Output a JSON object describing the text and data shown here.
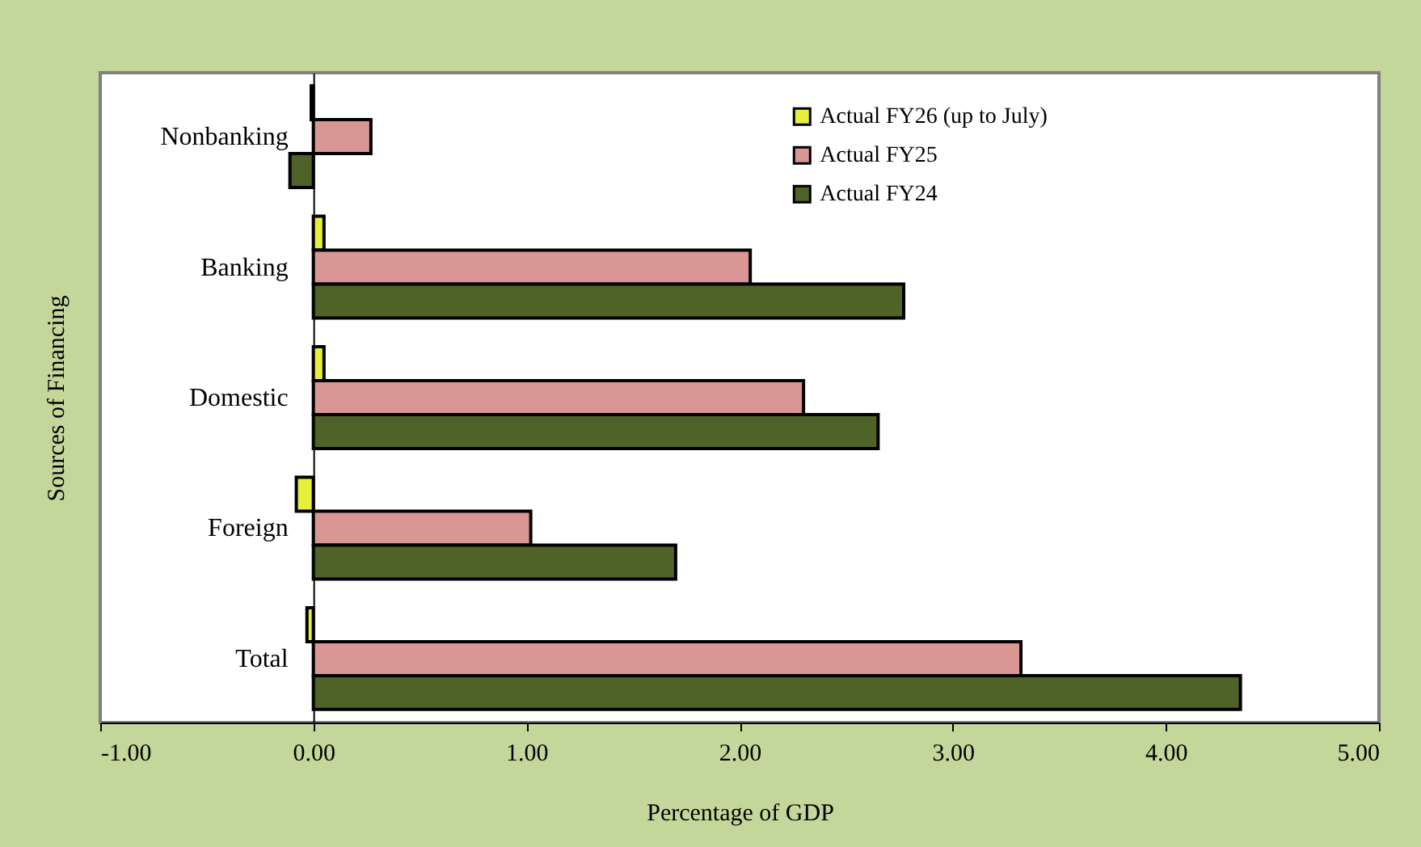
{
  "chart_data": {
    "type": "bar",
    "orientation": "horizontal",
    "xlabel": "Percentage of  GDP",
    "ylabel": "Sources of Financing",
    "categories": [
      "Nonbanking",
      "Banking",
      "Domestic",
      "Foreign",
      "Total"
    ],
    "series": [
      {
        "name": "Actual FY26 (up to July)",
        "color": "#e6f03c",
        "values": [
          -0.01,
          0.05,
          0.05,
          -0.08,
          -0.03
        ]
      },
      {
        "name": "Actual FY25",
        "color": "#da9694",
        "values": [
          0.27,
          2.05,
          2.3,
          1.02,
          3.32
        ]
      },
      {
        "name": "Actual FY24",
        "color": "#4f6228",
        "values": [
          -0.11,
          2.77,
          2.65,
          1.7,
          4.35
        ]
      }
    ],
    "xlim": [
      -1,
      5
    ],
    "xticks": [
      {
        "value": -1,
        "label": "-1.00"
      },
      {
        "value": 0,
        "label": "0.00"
      },
      {
        "value": 1,
        "label": "1.00"
      },
      {
        "value": 2,
        "label": "2.00"
      },
      {
        "value": 3,
        "label": "3.00"
      },
      {
        "value": 4,
        "label": "4.00"
      },
      {
        "value": 5,
        "label": "5.00"
      }
    ],
    "grid": false,
    "legend": "top right"
  }
}
